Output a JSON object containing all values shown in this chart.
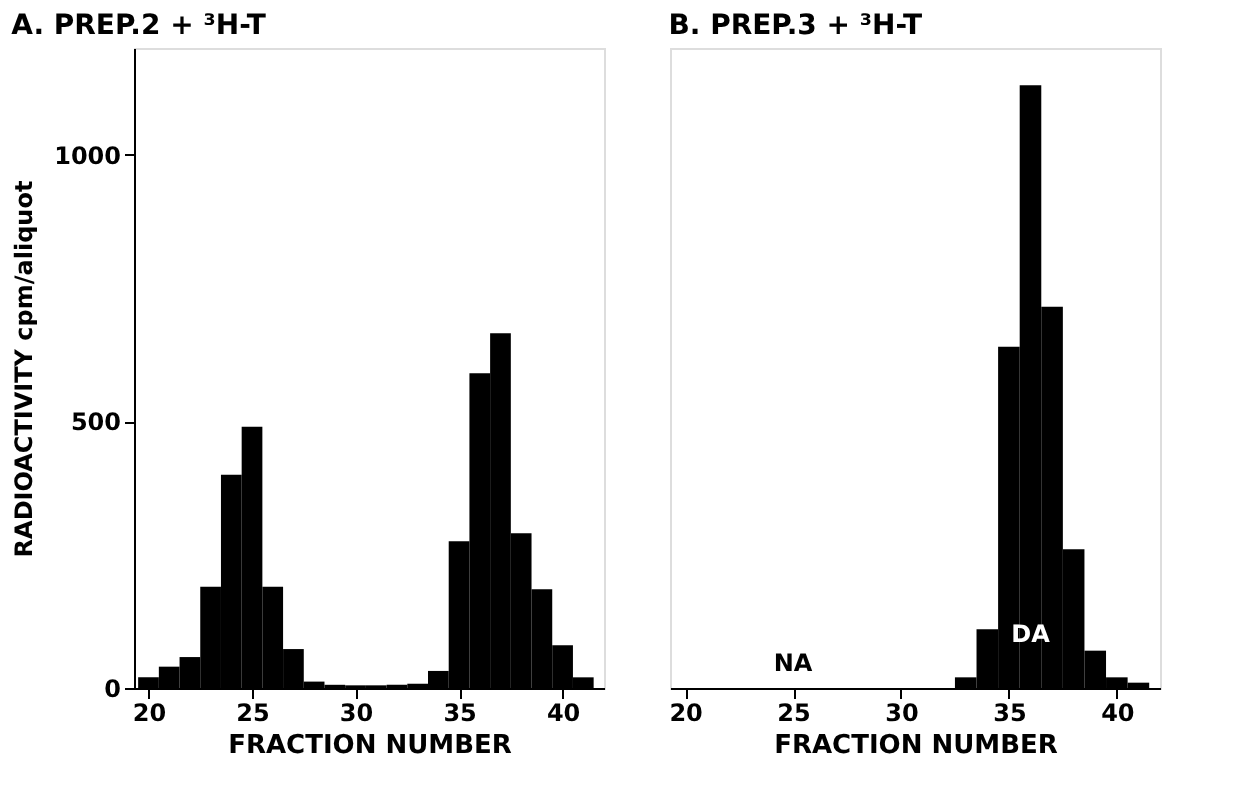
{
  "chart_data": [
    {
      "type": "bar",
      "title": "A. PREP.2 + ³H-T",
      "xlabel": "FRACTION NUMBER",
      "ylabel": "RADIOACTIVITY   cpm/aliquot",
      "x": [
        20,
        21,
        22,
        23,
        24,
        25,
        26,
        27,
        28,
        29,
        30,
        31,
        32,
        33,
        34,
        35,
        36,
        37,
        38,
        39,
        40,
        41
      ],
      "values": [
        20,
        40,
        58,
        190,
        400,
        490,
        190,
        73,
        12,
        6,
        5,
        5,
        6,
        8,
        32,
        275,
        590,
        665,
        290,
        185,
        80,
        20
      ],
      "color": "#000000",
      "xlim": [
        19.3,
        42
      ],
      "xticks": [
        20,
        25,
        30,
        35,
        40
      ],
      "ylim": [
        0,
        1200
      ],
      "yticks": [
        0,
        500,
        {
          "value": 1000,
          "label": "1000"
        }
      ],
      "grid": false
    },
    {
      "type": "bar",
      "title": "B. PREP.3 + ³H-T",
      "xlabel": "FRACTION NUMBER",
      "x": [
        20,
        21,
        22,
        23,
        24,
        25,
        26,
        27,
        28,
        29,
        30,
        31,
        32,
        33,
        34,
        35,
        36,
        37,
        38,
        39,
        40,
        41
      ],
      "values": [
        0,
        0,
        0,
        0,
        0,
        0,
        0,
        0,
        0,
        0,
        0,
        0,
        0,
        20,
        110,
        640,
        1130,
        715,
        260,
        70,
        20,
        10
      ],
      "color": "#000000",
      "xlim": [
        19.3,
        42
      ],
      "xticks": [
        20,
        25,
        30,
        35,
        40
      ],
      "ylim": [
        0,
        1200
      ],
      "grid": false,
      "tick_labels": "x",
      "annotations": [
        {
          "text": "NA",
          "x": 25,
          "y": 6
        },
        "DA"
      ]
    }
  ]
}
